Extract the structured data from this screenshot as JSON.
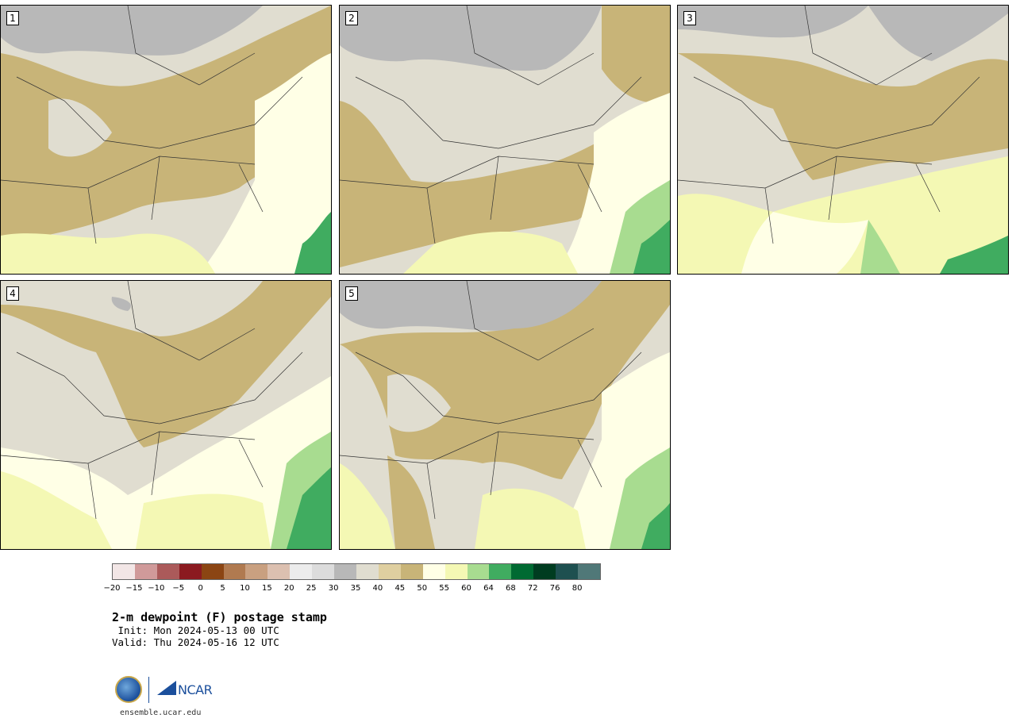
{
  "panels": [
    {
      "label": "1"
    },
    {
      "label": "2"
    },
    {
      "label": "3"
    },
    {
      "label": "4"
    },
    {
      "label": "5"
    }
  ],
  "colorbar": {
    "colors": [
      "#f2e6e6",
      "#d09a9a",
      "#ab5a5a",
      "#8b1a20",
      "#8b4513",
      "#b07a50",
      "#c9a080",
      "#dcc0b0",
      "#ececec",
      "#dcdcdc",
      "#b8b8b8",
      "#e0ddd0",
      "#dfcfa0",
      "#c8b478",
      "#ffffe6",
      "#f4f8b4",
      "#a8dc90",
      "#40ac60",
      "#006a32",
      "#003c20",
      "#1e5050",
      "#507878"
    ],
    "tick_labels": [
      "−20",
      "−15",
      "−10",
      "−5",
      "0",
      "5",
      "10",
      "15",
      "20",
      "25",
      "30",
      "35",
      "40",
      "45",
      "50",
      "55",
      "60",
      "64",
      "68",
      "72",
      "76",
      "80"
    ]
  },
  "title": "2-m dewpoint (F) postage stamp",
  "init": " Init: Mon 2024-05-13 00 UTC",
  "valid": "Valid: Thu 2024-05-16 12 UTC",
  "logos": {
    "nsf_text": "NSF",
    "ncar_text": "NCAR"
  },
  "url": "ensemble.ucar.edu"
}
